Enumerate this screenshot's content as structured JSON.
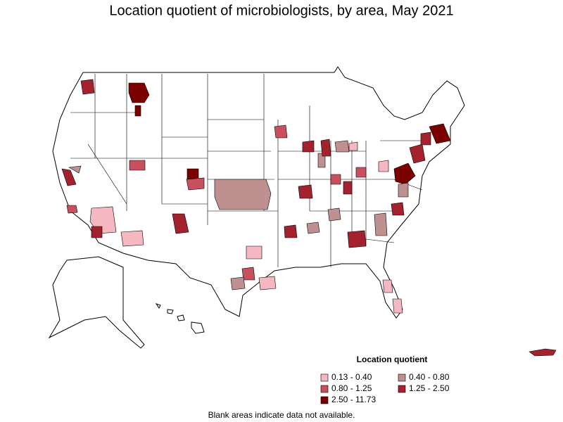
{
  "title": "Location quotient of microbiologists, by area, May 2021",
  "legend": {
    "title": "Location quotient",
    "items": [
      {
        "label": "0.13 - 0.40",
        "color": "#f5b8c0"
      },
      {
        "label": "0.40 - 0.80",
        "color": "#bf9090"
      },
      {
        "label": "0.80 - 1.25",
        "color": "#c8505e"
      },
      {
        "label": "1.25 - 2.50",
        "color": "#a3222e"
      },
      {
        "label": "2.50 - 11.73",
        "color": "#7b0000"
      }
    ]
  },
  "footnote": "Blank areas indicate data not available."
}
